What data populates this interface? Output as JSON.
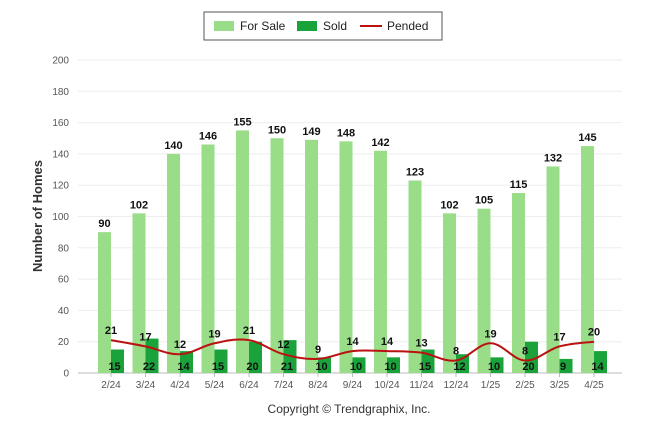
{
  "chart_data": {
    "type": "bar",
    "categories": [
      "2/24",
      "3/24",
      "4/24",
      "5/24",
      "6/24",
      "7/24",
      "8/24",
      "9/24",
      "10/24",
      "11/24",
      "12/24",
      "1/25",
      "2/25",
      "3/25",
      "4/25"
    ],
    "series": [
      {
        "name": "For Sale",
        "kind": "bar",
        "color": "#99dd88",
        "values": [
          90,
          102,
          140,
          146,
          155,
          150,
          149,
          148,
          142,
          123,
          102,
          105,
          115,
          132,
          145
        ]
      },
      {
        "name": "Sold",
        "kind": "bar",
        "color": "#1aa33a",
        "values": [
          15,
          22,
          14,
          15,
          20,
          21,
          10,
          10,
          10,
          15,
          12,
          10,
          20,
          9,
          14
        ]
      },
      {
        "name": "Pended",
        "kind": "line",
        "color": "#bb1111",
        "values": [
          21,
          17,
          12,
          19,
          21,
          12,
          9,
          14,
          14,
          13,
          8,
          19,
          8,
          17,
          20
        ]
      }
    ],
    "title": "",
    "xlabel": "",
    "ylabel": "Number of Homes",
    "ylim": [
      0,
      200
    ],
    "yticks": [
      0,
      20,
      40,
      60,
      80,
      100,
      120,
      140,
      160,
      180,
      200
    ],
    "grid": true,
    "legend_position": "top-center",
    "copyright": "Copyright © Trendgraphix, Inc."
  }
}
